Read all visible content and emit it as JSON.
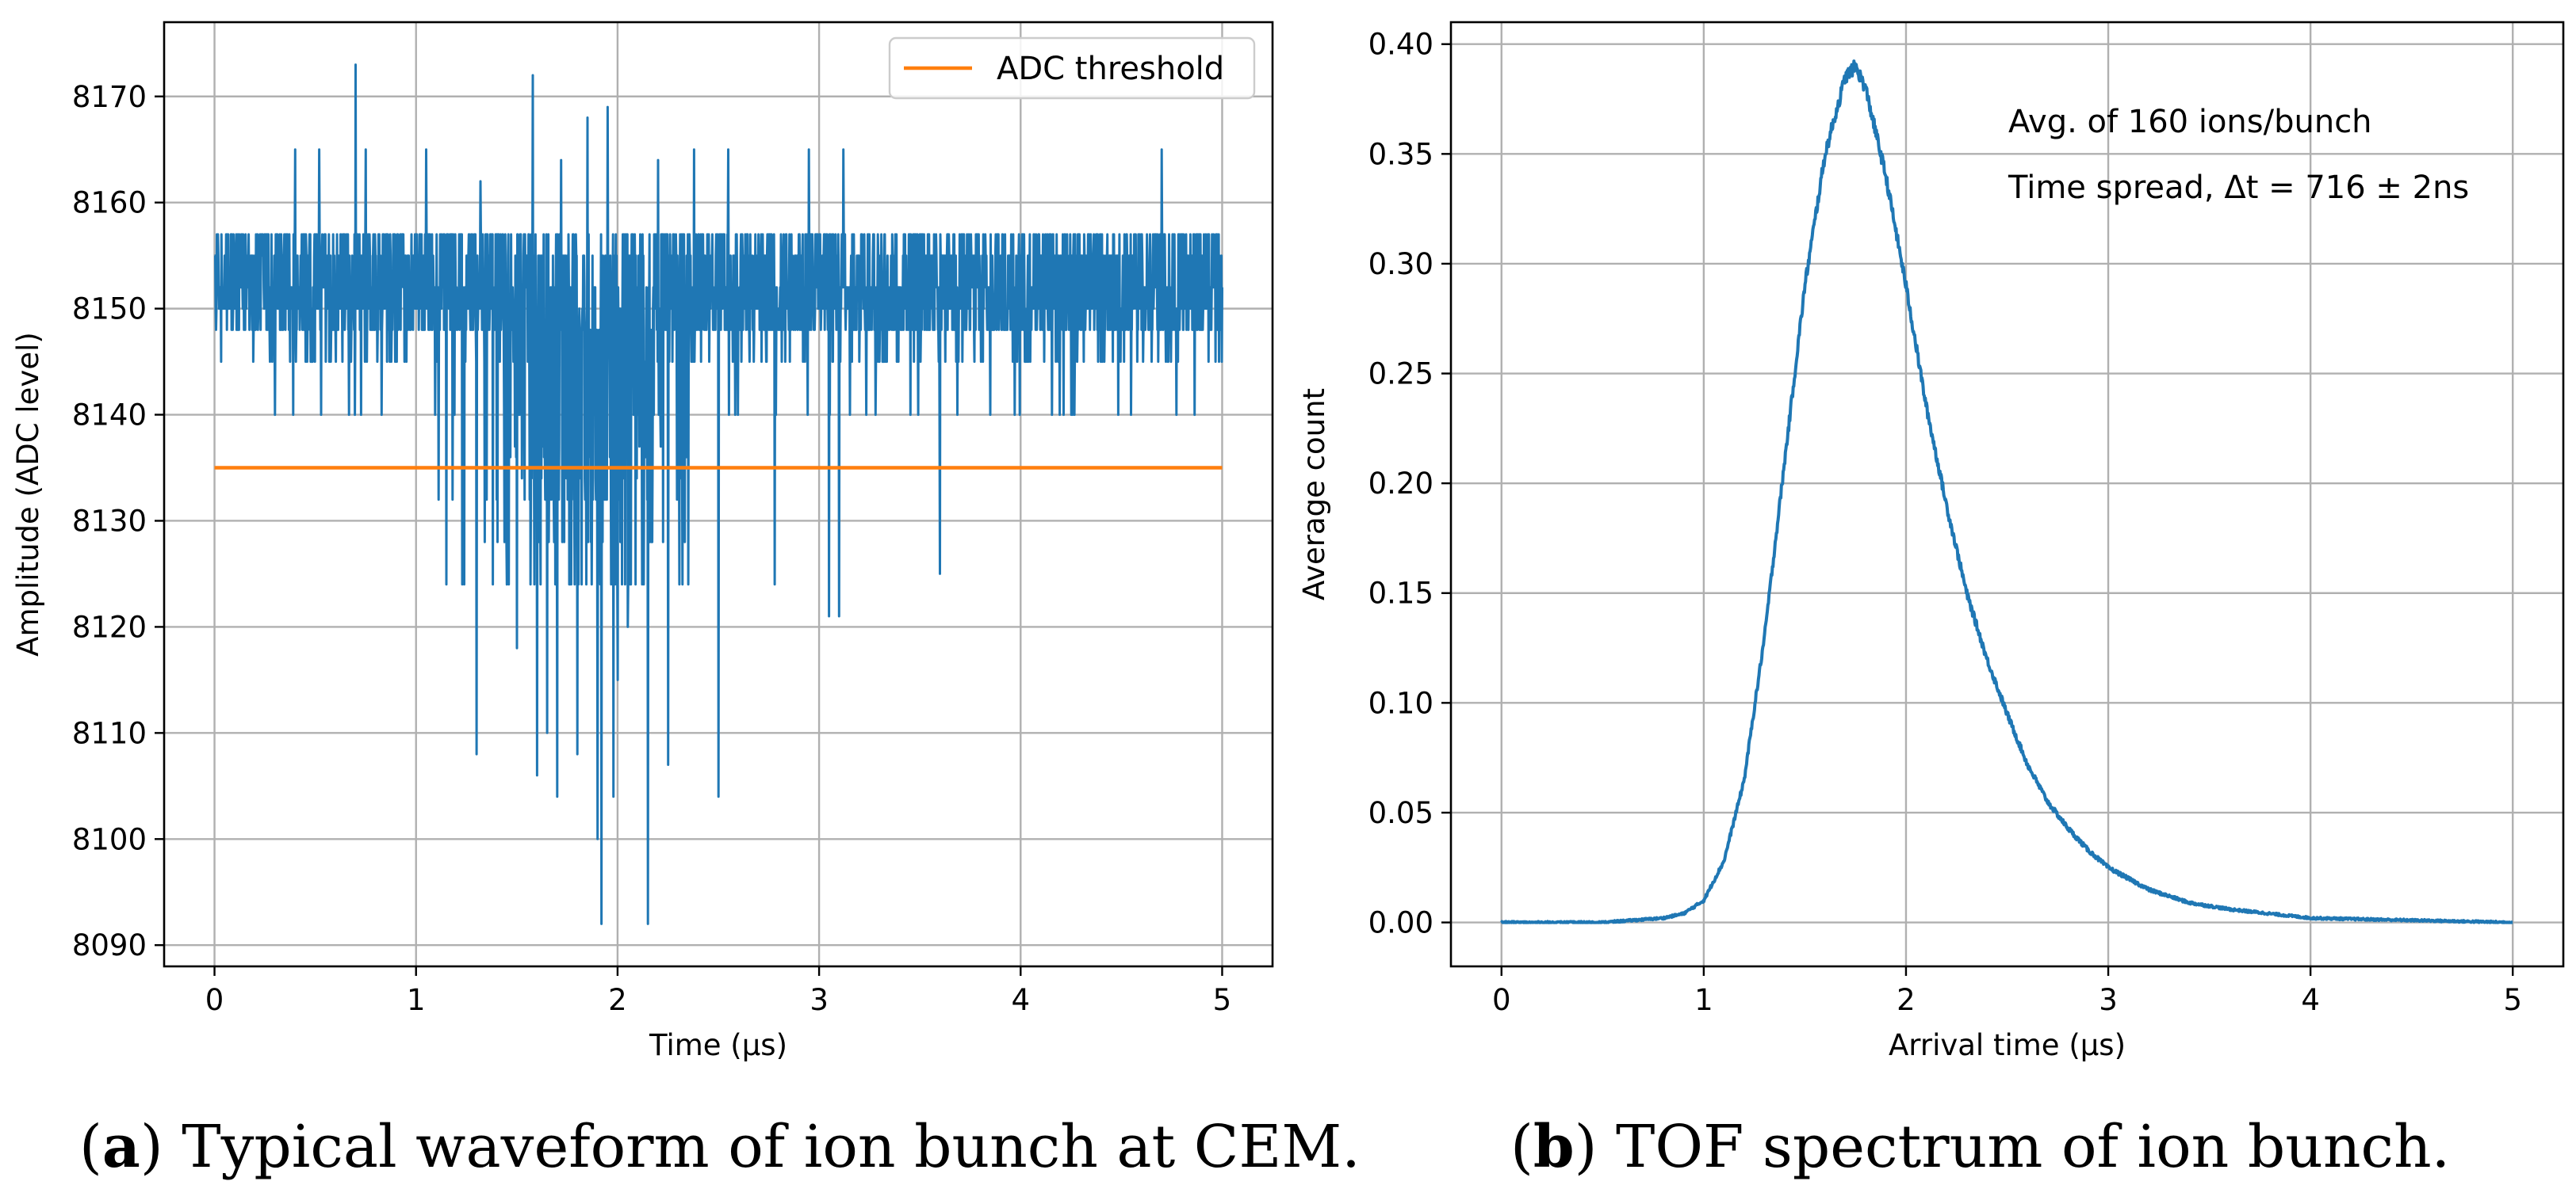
{
  "chart_data": [
    {
      "id": "a",
      "type": "line",
      "title": "",
      "xlabel": "Time (μs)",
      "ylabel": "Amplitude (ADC level)",
      "xlim": [
        -0.25,
        5.25
      ],
      "ylim": [
        8088,
        8177
      ],
      "xticks": [
        0,
        1,
        2,
        3,
        4,
        5
      ],
      "yticks": [
        8090,
        8100,
        8110,
        8120,
        8130,
        8140,
        8150,
        8160,
        8170
      ],
      "grid": true,
      "legend_position": "top-right",
      "series": [
        {
          "name": "waveform",
          "color": "#1f77b4",
          "baseline": 8152,
          "noise_band": [
            8145,
            8157
          ],
          "x_range": [
            0,
            5
          ],
          "spikes": [
            {
              "x": 0.4,
              "y": 8165
            },
            {
              "x": 0.52,
              "y": 8165
            },
            {
              "x": 0.7,
              "y": 8173
            },
            {
              "x": 0.75,
              "y": 8165
            },
            {
              "x": 1.05,
              "y": 8165
            },
            {
              "x": 1.15,
              "y": 8124
            },
            {
              "x": 1.23,
              "y": 8124
            },
            {
              "x": 1.3,
              "y": 8108
            },
            {
              "x": 1.32,
              "y": 8162
            },
            {
              "x": 1.45,
              "y": 8124
            },
            {
              "x": 1.5,
              "y": 8118
            },
            {
              "x": 1.58,
              "y": 8172
            },
            {
              "x": 1.6,
              "y": 8106
            },
            {
              "x": 1.65,
              "y": 8110
            },
            {
              "x": 1.7,
              "y": 8104
            },
            {
              "x": 1.72,
              "y": 8164
            },
            {
              "x": 1.8,
              "y": 8108
            },
            {
              "x": 1.85,
              "y": 8168
            },
            {
              "x": 1.9,
              "y": 8100
            },
            {
              "x": 1.92,
              "y": 8092
            },
            {
              "x": 1.95,
              "y": 8169
            },
            {
              "x": 1.98,
              "y": 8104
            },
            {
              "x": 2.0,
              "y": 8115
            },
            {
              "x": 2.05,
              "y": 8120
            },
            {
              "x": 2.15,
              "y": 8092
            },
            {
              "x": 2.2,
              "y": 8164
            },
            {
              "x": 2.25,
              "y": 8107
            },
            {
              "x": 2.35,
              "y": 8124
            },
            {
              "x": 2.38,
              "y": 8165
            },
            {
              "x": 2.5,
              "y": 8104
            },
            {
              "x": 2.55,
              "y": 8165
            },
            {
              "x": 2.78,
              "y": 8124
            },
            {
              "x": 2.95,
              "y": 8165
            },
            {
              "x": 3.05,
              "y": 8121
            },
            {
              "x": 3.1,
              "y": 8121
            },
            {
              "x": 3.12,
              "y": 8165
            },
            {
              "x": 3.6,
              "y": 8125
            },
            {
              "x": 4.7,
              "y": 8165
            }
          ]
        },
        {
          "name": "ADC threshold",
          "color": "#ff7f0e",
          "x": [
            0,
            5
          ],
          "y": [
            8135,
            8135
          ]
        }
      ],
      "legend": [
        "ADC threshold"
      ]
    },
    {
      "id": "b",
      "type": "line",
      "title": "",
      "xlabel": "Arrival time (μs)",
      "ylabel": "Average count",
      "xlim": [
        -0.25,
        5.25
      ],
      "ylim": [
        -0.02,
        0.41
      ],
      "xticks": [
        0,
        1,
        2,
        3,
        4,
        5
      ],
      "yticks": [
        0.0,
        0.05,
        0.1,
        0.15,
        0.2,
        0.25,
        0.3,
        0.35,
        0.4
      ],
      "ytick_labels": [
        "0.00",
        "0.05",
        "0.10",
        "0.15",
        "0.20",
        "0.25",
        "0.30",
        "0.35",
        "0.40"
      ],
      "grid": true,
      "series": [
        {
          "name": "TOF spectrum",
          "color": "#1f77b4",
          "x": [
            0,
            0.5,
            0.8,
            0.9,
            1.0,
            1.1,
            1.2,
            1.3,
            1.4,
            1.5,
            1.6,
            1.7,
            1.75,
            1.8,
            1.9,
            2.0,
            2.1,
            2.2,
            2.3,
            2.4,
            2.5,
            2.6,
            2.7,
            2.8,
            2.9,
            3.0,
            3.2,
            3.4,
            3.6,
            3.8,
            4.0,
            4.5,
            5.0
          ],
          "values": [
            0.0,
            0.0,
            0.002,
            0.004,
            0.01,
            0.028,
            0.065,
            0.13,
            0.21,
            0.29,
            0.35,
            0.385,
            0.39,
            0.38,
            0.34,
            0.29,
            0.235,
            0.19,
            0.15,
            0.12,
            0.095,
            0.072,
            0.055,
            0.043,
            0.033,
            0.025,
            0.015,
            0.009,
            0.006,
            0.004,
            0.002,
            0.001,
            0.0
          ]
        }
      ],
      "annotations": [
        "Avg. of 160 ions/bunch",
        "Time spread, Δt = 716 ± 2ns"
      ]
    }
  ],
  "captions": {
    "a": {
      "label": "a",
      "text": " Typical waveform of ion bunch at CEM."
    },
    "b": {
      "label": "b",
      "text": " TOF spectrum of ion bunch."
    }
  }
}
